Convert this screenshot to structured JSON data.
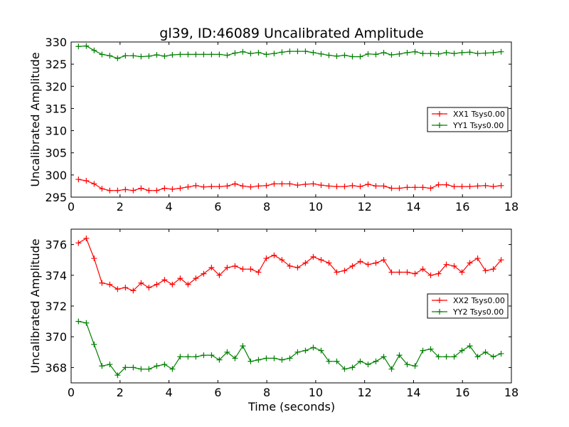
{
  "chart_data": [
    {
      "type": "line",
      "title": "gl39, ID:46089 Uncalibrated Amplitude",
      "xlabel": "",
      "ylabel": "Uncalibrated Amplitude",
      "xlim": [
        0,
        18
      ],
      "ylim": [
        295,
        330
      ],
      "xticks": [
        "0",
        "2",
        "4",
        "6",
        "8",
        "10",
        "12",
        "14",
        "16",
        "18"
      ],
      "yticks": [
        "295",
        "300",
        "305",
        "310",
        "315",
        "320",
        "325",
        "330"
      ],
      "legend_position": "center-right",
      "marker": "+",
      "x": [
        0.3,
        0.62,
        0.94,
        1.26,
        1.58,
        1.9,
        2.22,
        2.54,
        2.86,
        3.18,
        3.5,
        3.82,
        4.14,
        4.46,
        4.78,
        5.1,
        5.42,
        5.74,
        6.06,
        6.38,
        6.7,
        7.02,
        7.34,
        7.66,
        7.98,
        8.3,
        8.62,
        8.94,
        9.26,
        9.58,
        9.9,
        10.22,
        10.54,
        10.86,
        11.18,
        11.5,
        11.82,
        12.14,
        12.46,
        12.78,
        13.1,
        13.42,
        13.74,
        14.06,
        14.38,
        14.7,
        15.02,
        15.34,
        15.66,
        15.98,
        16.3,
        16.62,
        16.94,
        17.26,
        17.58
      ],
      "series": [
        {
          "name": "XX1 Tsys0.00",
          "color": "#ff0000",
          "values": [
            299.0,
            298.7,
            298.0,
            296.9,
            296.5,
            296.5,
            296.7,
            296.5,
            297.0,
            296.5,
            296.5,
            297.0,
            296.8,
            297.0,
            297.3,
            297.6,
            297.3,
            297.4,
            297.4,
            297.5,
            298.0,
            297.5,
            297.3,
            297.5,
            297.6,
            298.0,
            298.0,
            298.0,
            297.7,
            297.9,
            298.0,
            297.7,
            297.5,
            297.4,
            297.4,
            297.6,
            297.4,
            297.9,
            297.5,
            297.5,
            297.0,
            297.0,
            297.2,
            297.2,
            297.2,
            297.0,
            297.8,
            297.8,
            297.4,
            297.4,
            297.4,
            297.5,
            297.6,
            297.4,
            297.6
          ]
        },
        {
          "name": "YY1 Tsys0.00",
          "color": "#008000",
          "values": [
            329.0,
            329.1,
            328.1,
            327.2,
            326.9,
            326.3,
            326.9,
            326.9,
            326.7,
            326.8,
            327.1,
            326.8,
            327.1,
            327.2,
            327.2,
            327.2,
            327.2,
            327.2,
            327.2,
            327.0,
            327.5,
            327.8,
            327.4,
            327.6,
            327.2,
            327.4,
            327.7,
            327.9,
            327.9,
            327.9,
            327.6,
            327.3,
            327.0,
            326.8,
            327.0,
            326.7,
            326.7,
            327.3,
            327.2,
            327.6,
            327.1,
            327.3,
            327.6,
            327.8,
            327.4,
            327.4,
            327.3,
            327.6,
            327.4,
            327.6,
            327.7,
            327.4,
            327.5,
            327.6,
            327.8
          ]
        }
      ]
    },
    {
      "type": "line",
      "title": "",
      "xlabel": "Time (seconds)",
      "ylabel": "Uncalibrated Amplitude",
      "xlim": [
        0,
        18
      ],
      "ylim": [
        367,
        377
      ],
      "xticks": [
        "0",
        "2",
        "4",
        "6",
        "8",
        "10",
        "12",
        "14",
        "16",
        "18"
      ],
      "yticks": [
        "368",
        "370",
        "372",
        "374",
        "376"
      ],
      "legend_position": "center-right",
      "marker": "+",
      "x": [
        0.3,
        0.62,
        0.94,
        1.26,
        1.58,
        1.9,
        2.22,
        2.54,
        2.86,
        3.18,
        3.5,
        3.82,
        4.14,
        4.46,
        4.78,
        5.1,
        5.42,
        5.74,
        6.06,
        6.38,
        6.7,
        7.02,
        7.34,
        7.66,
        7.98,
        8.3,
        8.62,
        8.94,
        9.26,
        9.58,
        9.9,
        10.22,
        10.54,
        10.86,
        11.18,
        11.5,
        11.82,
        12.14,
        12.46,
        12.78,
        13.1,
        13.42,
        13.74,
        14.06,
        14.38,
        14.7,
        15.02,
        15.34,
        15.66,
        15.98,
        16.3,
        16.62,
        16.94,
        17.26,
        17.58
      ],
      "series": [
        {
          "name": "XX2 Tsys0.00",
          "color": "#ff0000",
          "values": [
            376.1,
            376.4,
            375.1,
            373.5,
            373.4,
            373.1,
            373.2,
            373.0,
            373.5,
            373.2,
            373.4,
            373.7,
            373.4,
            373.8,
            373.4,
            373.8,
            374.1,
            374.5,
            374.0,
            374.5,
            374.6,
            374.4,
            374.4,
            374.2,
            375.1,
            375.3,
            375.0,
            374.6,
            374.5,
            374.8,
            375.2,
            375.0,
            374.8,
            374.2,
            374.3,
            374.6,
            374.9,
            374.7,
            374.8,
            375.0,
            374.2,
            374.2,
            374.2,
            374.1,
            374.4,
            374.0,
            374.1,
            374.7,
            374.6,
            374.2,
            374.8,
            375.1,
            374.3,
            374.4,
            375.0
          ]
        },
        {
          "name": "YY2 Tsys0.00",
          "color": "#008000",
          "values": [
            371.0,
            370.9,
            369.5,
            368.1,
            368.2,
            367.5,
            368.0,
            368.0,
            367.9,
            367.9,
            368.1,
            368.2,
            367.9,
            368.7,
            368.7,
            368.7,
            368.8,
            368.8,
            368.5,
            369.0,
            368.6,
            369.4,
            368.4,
            368.5,
            368.6,
            368.6,
            368.5,
            368.6,
            369.0,
            369.1,
            369.3,
            369.1,
            368.4,
            368.4,
            367.9,
            368.0,
            368.4,
            368.2,
            368.4,
            368.7,
            367.9,
            368.8,
            368.2,
            368.1,
            369.1,
            369.2,
            368.7,
            368.7,
            368.7,
            369.1,
            369.4,
            368.7,
            369.0,
            368.7,
            368.9
          ]
        }
      ]
    }
  ]
}
